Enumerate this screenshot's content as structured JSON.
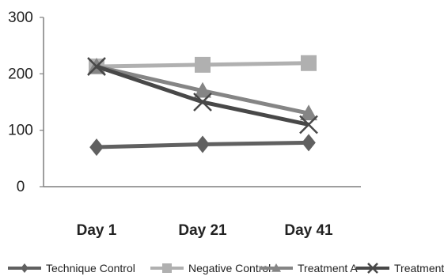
{
  "chart_data": {
    "type": "line",
    "categories": [
      "Day 1",
      "Day 21",
      "Day 41"
    ],
    "ylim": [
      0,
      300
    ],
    "yticks": [
      0,
      100,
      200,
      300
    ],
    "grid": false,
    "legend_position": "bottom",
    "series": [
      {
        "name": "Technique Control",
        "values": [
          70,
          75,
          78
        ],
        "color": "#606060",
        "marker": "diamond"
      },
      {
        "name": "Negative Control",
        "values": [
          213,
          216,
          219
        ],
        "color": "#b0b0b0",
        "marker": "square"
      },
      {
        "name": "Treatment A",
        "values": [
          213,
          170,
          130
        ],
        "color": "#858585",
        "marker": "triangle"
      },
      {
        "name": "Treatment B",
        "values": [
          213,
          150,
          110
        ],
        "color": "#484848",
        "marker": "x"
      }
    ]
  }
}
